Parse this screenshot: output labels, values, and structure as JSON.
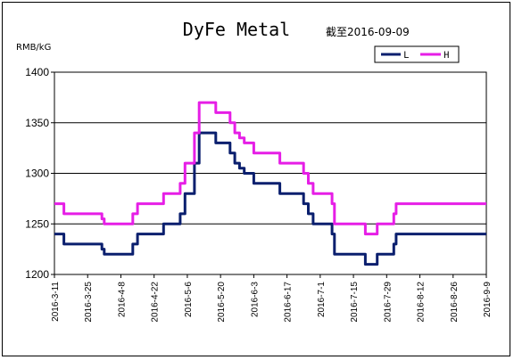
{
  "chart_data": {
    "type": "line",
    "title": "DyFe Metal",
    "subtitle": "截至2016-09-09",
    "ylabel": "RMB/kG",
    "ylim": [
      1200,
      1400
    ],
    "yticks": [
      1200,
      1250,
      1300,
      1350,
      1400
    ],
    "grid": "horizontal",
    "legend_position": "top-right",
    "x_range": [
      "2016-3-11",
      "2016-9-9"
    ],
    "x_tick_labels": [
      "2016-3-11",
      "2016-3-25",
      "2016-4-8",
      "2016-4-22",
      "2016-5-6",
      "2016-5-20",
      "2016-6-3",
      "2016-6-17",
      "2016-7-1",
      "2016-7-15",
      "2016-7-29",
      "2016-8-12",
      "2016-8-26",
      "2016-9-9"
    ],
    "x": [
      "2016-3-11",
      "2016-3-15",
      "2016-3-29",
      "2016-3-31",
      "2016-4-1",
      "2016-4-12",
      "2016-4-13",
      "2016-4-15",
      "2016-4-19",
      "2016-4-26",
      "2016-4-28",
      "2016-5-3",
      "2016-5-5",
      "2016-5-9",
      "2016-5-11",
      "2016-5-14",
      "2016-5-18",
      "2016-5-24",
      "2016-5-26",
      "2016-5-28",
      "2016-5-30",
      "2016-6-3",
      "2016-6-8",
      "2016-6-14",
      "2016-6-19",
      "2016-6-24",
      "2016-6-26",
      "2016-6-28",
      "2016-7-1",
      "2016-7-6",
      "2016-7-7",
      "2016-7-20",
      "2016-7-22",
      "2016-7-25",
      "2016-7-30",
      "2016-8-1",
      "2016-8-2",
      "2016-9-9"
    ],
    "series": [
      {
        "name": "L",
        "color": "#0a1f6e",
        "values": [
          1240,
          1230,
          1230,
          1225,
          1220,
          1220,
          1230,
          1240,
          1240,
          1250,
          1250,
          1260,
          1280,
          1310,
          1340,
          1340,
          1330,
          1320,
          1310,
          1305,
          1300,
          1290,
          1290,
          1280,
          1280,
          1270,
          1260,
          1250,
          1250,
          1240,
          1220,
          1210,
          1210,
          1220,
          1220,
          1230,
          1240,
          1240
        ]
      },
      {
        "name": "H",
        "color": "#e61ee6",
        "values": [
          1270,
          1260,
          1260,
          1255,
          1250,
          1250,
          1260,
          1270,
          1270,
          1280,
          1280,
          1290,
          1310,
          1340,
          1370,
          1370,
          1360,
          1350,
          1340,
          1335,
          1330,
          1320,
          1320,
          1310,
          1310,
          1300,
          1290,
          1280,
          1280,
          1270,
          1250,
          1240,
          1240,
          1250,
          1250,
          1260,
          1270,
          1270
        ]
      }
    ]
  }
}
